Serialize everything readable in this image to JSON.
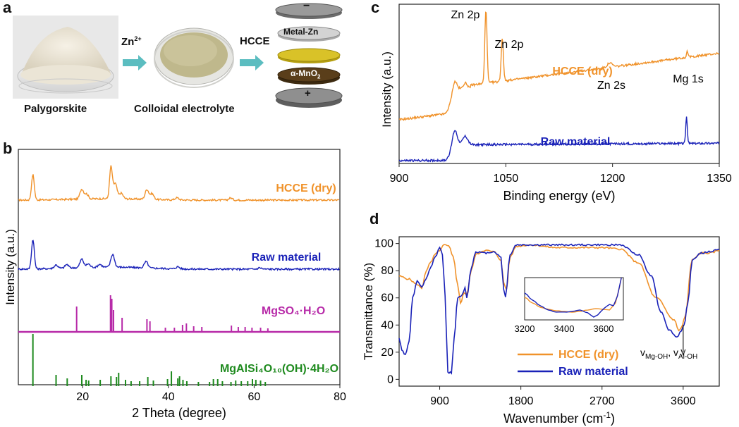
{
  "panel_a": {
    "letter": "a",
    "labels": [
      "Palygorskite",
      "Colloidal electrolyte"
    ],
    "arrow1_label": "Zn",
    "arrow1_sup": "2+",
    "arrow2_label": "HCCE",
    "stack": {
      "top_sign": "−",
      "metal_zn": "Metal-Zn",
      "mno2": "α-MnO",
      "mno2_sub": "2",
      "bottom_sign": "+"
    },
    "colors": {
      "arrow": "#5bbdc0",
      "cap": "#8a8a8a",
      "zn": "#c9c9c9",
      "gel": "#d9c228",
      "mno2": "#5a3e1a"
    }
  },
  "chart_data": [
    {
      "panel": "b",
      "type": "line",
      "xlabel": "2 Theta (degree)",
      "ylabel": "Intensity (a.u.)",
      "xlim": [
        5,
        80
      ],
      "xticks": [
        20,
        40,
        60,
        80
      ],
      "series": [
        {
          "name": "HCCE (dry)",
          "color": "#f0922a",
          "peaks": [
            [
              8.4,
              36
            ],
            [
              19.8,
              14
            ],
            [
              26.6,
              45
            ],
            [
              27.6,
              22
            ],
            [
              35.0,
              14
            ],
            [
              20.9,
              7
            ],
            [
              29.0,
              8
            ],
            [
              36.2,
              8
            ],
            [
              42.0,
              3
            ],
            [
              54.5,
              3
            ]
          ]
        },
        {
          "name": "Raw material",
          "color": "#1a22b8",
          "peaks": [
            [
              8.4,
              42
            ],
            [
              19.8,
              12
            ],
            [
              27.0,
              18
            ],
            [
              34.8,
              9
            ],
            [
              13.8,
              5
            ],
            [
              16.3,
              5
            ],
            [
              21.3,
              5
            ],
            [
              24.0,
              4
            ],
            [
              42.2,
              3
            ],
            [
              61.3,
              2
            ]
          ]
        }
      ],
      "references": [
        {
          "name": "MgSO₄·H₂O",
          "color": "#b72aa8",
          "sticks": [
            [
              18.6,
              35
            ],
            [
              26.5,
              51
            ],
            [
              26.8,
              46
            ],
            [
              27.2,
              30
            ],
            [
              29.2,
              19
            ],
            [
              35.0,
              17
            ],
            [
              35.7,
              14
            ],
            [
              39.3,
              5
            ],
            [
              41.4,
              5
            ],
            [
              43.3,
              9
            ],
            [
              44.2,
              11
            ],
            [
              45.9,
              7
            ],
            [
              47.8,
              6
            ],
            [
              54.7,
              8
            ],
            [
              56.3,
              6
            ],
            [
              57.9,
              6
            ],
            [
              59.5,
              5
            ],
            [
              61.5,
              5
            ],
            [
              63.2,
              4
            ]
          ]
        },
        {
          "name": "MgAlSi₄O₁₀(OH)·4H₂O",
          "color": "#1e8a1e",
          "sticks": [
            [
              8.4,
              74
            ],
            [
              13.8,
              16
            ],
            [
              16.4,
              11
            ],
            [
              19.8,
              16
            ],
            [
              20.8,
              9
            ],
            [
              21.4,
              8
            ],
            [
              24.1,
              9
            ],
            [
              26.6,
              14
            ],
            [
              27.9,
              13
            ],
            [
              28.4,
              19
            ],
            [
              30.0,
              9
            ],
            [
              31.3,
              7
            ],
            [
              33.3,
              7
            ],
            [
              35.2,
              13
            ],
            [
              36.5,
              8
            ],
            [
              39.8,
              10
            ],
            [
              40.7,
              21
            ],
            [
              42.2,
              11
            ],
            [
              42.6,
              14
            ],
            [
              43.4,
              9
            ],
            [
              44.3,
              7
            ],
            [
              47.0,
              6
            ],
            [
              49.6,
              6
            ],
            [
              50.5,
              10
            ],
            [
              51.5,
              10
            ],
            [
              52.6,
              7
            ],
            [
              54.6,
              6
            ],
            [
              55.7,
              8
            ],
            [
              57.0,
              7
            ],
            [
              58.5,
              7
            ],
            [
              59.6,
              10
            ],
            [
              60.4,
              9
            ],
            [
              61.5,
              8
            ],
            [
              62.6,
              6
            ]
          ]
        }
      ]
    },
    {
      "panel": "c",
      "type": "line",
      "xlabel": "Binding energy (eV)",
      "ylabel": "Intensity (a.u.)",
      "xlim": [
        900,
        1350
      ],
      "xticks": [
        900,
        1050,
        1200,
        1350
      ],
      "series": [
        {
          "name": "HCCE (dry)",
          "color": "#f0922a",
          "peaks": [
            [
              1022,
              105
            ],
            [
              1045,
              61
            ],
            [
              978,
              24
            ],
            [
              993,
              10
            ],
            [
              1196,
              6
            ],
            [
              1305,
              9
            ]
          ]
        },
        {
          "name": "Raw material",
          "color": "#1a22b8",
          "peaks": [
            [
              978,
              28
            ],
            [
              993,
              12
            ],
            [
              1304,
              38
            ]
          ]
        }
      ],
      "annotations": [
        "Zn 2p",
        "Zn 2p",
        "Zn 2s",
        "Mg 1s"
      ]
    },
    {
      "panel": "d",
      "type": "line",
      "xlabel": "Wavenumber (cm",
      "xlabel_sup": "-1",
      "xlabel_end": ")",
      "ylabel": "Transmittance (%)",
      "xlim": [
        450,
        4000
      ],
      "ylim": [
        -5,
        105
      ],
      "xticks": [
        900,
        1800,
        2700,
        3600
      ],
      "yticks": [
        0,
        20,
        40,
        60,
        80,
        100
      ],
      "series": [
        {
          "name": "HCCE (dry)",
          "color": "#f0922a",
          "points": [
            [
              450,
              76
            ],
            [
              550,
              74
            ],
            [
              650,
              70
            ],
            [
              700,
              67
            ],
            [
              750,
              80
            ],
            [
              800,
              86
            ],
            [
              850,
              92
            ],
            [
              900,
              95
            ],
            [
              950,
              99
            ],
            [
              1000,
              98
            ],
            [
              1050,
              90
            ],
            [
              1100,
              70
            ],
            [
              1130,
              56
            ],
            [
              1170,
              64
            ],
            [
              1200,
              62
            ],
            [
              1250,
              80
            ],
            [
              1300,
              92
            ],
            [
              1400,
              95
            ],
            [
              1500,
              94
            ],
            [
              1580,
              88
            ],
            [
              1610,
              71
            ],
            [
              1640,
              66
            ],
            [
              1680,
              90
            ],
            [
              1750,
              98
            ],
            [
              1900,
              99
            ],
            [
              2200,
              97
            ],
            [
              2500,
              97
            ],
            [
              2700,
              97
            ],
            [
              2900,
              96
            ],
            [
              3100,
              86
            ],
            [
              3300,
              60
            ],
            [
              3500,
              44
            ],
            [
              3550,
              36
            ],
            [
              3580,
              38
            ],
            [
              3620,
              46
            ],
            [
              3700,
              88
            ],
            [
              3800,
              93
            ],
            [
              3900,
              93
            ],
            [
              4000,
              95
            ]
          ]
        },
        {
          "name": "Raw material",
          "color": "#1a22b8",
          "points": [
            [
              450,
              30
            ],
            [
              480,
              22
            ],
            [
              520,
              18
            ],
            [
              560,
              28
            ],
            [
              600,
              60
            ],
            [
              650,
              72
            ],
            [
              700,
              68
            ],
            [
              750,
              74
            ],
            [
              800,
              82
            ],
            [
              850,
              90
            ],
            [
              900,
              97
            ],
            [
              930,
              92
            ],
            [
              960,
              62
            ],
            [
              990,
              5
            ],
            [
              1030,
              5
            ],
            [
              1060,
              30
            ],
            [
              1100,
              60
            ],
            [
              1150,
              62
            ],
            [
              1180,
              68
            ],
            [
              1200,
              60
            ],
            [
              1250,
              82
            ],
            [
              1300,
              94
            ],
            [
              1400,
              93
            ],
            [
              1500,
              94
            ],
            [
              1580,
              90
            ],
            [
              1610,
              66
            ],
            [
              1630,
              61
            ],
            [
              1680,
              92
            ],
            [
              1750,
              99
            ],
            [
              2000,
              99
            ],
            [
              2300,
              99
            ],
            [
              2700,
              99
            ],
            [
              2900,
              99
            ],
            [
              3100,
              92
            ],
            [
              3250,
              76
            ],
            [
              3350,
              50
            ],
            [
              3450,
              36
            ],
            [
              3530,
              31
            ],
            [
              3580,
              36
            ],
            [
              3610,
              40
            ],
            [
              3650,
              55
            ],
            [
              3700,
              88
            ],
            [
              3800,
              93
            ],
            [
              3900,
              94
            ],
            [
              4000,
              96
            ]
          ]
        }
      ],
      "inset": {
        "xlim": [
          3200,
          3700
        ],
        "xticks": [
          3200,
          3400,
          3600
        ],
        "series": [
          {
            "name": "HCCE (dry)",
            "color": "#f0922a",
            "points": [
              [
                3200,
                72
              ],
              [
                3240,
                64
              ],
              [
                3280,
                58
              ],
              [
                3320,
                55
              ],
              [
                3360,
                53
              ],
              [
                3400,
                52
              ],
              [
                3440,
                51
              ],
              [
                3480,
                52
              ],
              [
                3520,
                54
              ],
              [
                3560,
                56
              ],
              [
                3600,
                55
              ],
              [
                3630,
                54
              ],
              [
                3660,
                64
              ],
              [
                3680,
                86
              ],
              [
                3690,
                100
              ]
            ]
          },
          {
            "name": "Raw material",
            "color": "#1a22b8",
            "points": [
              [
                3200,
                78
              ],
              [
                3240,
                68
              ],
              [
                3280,
                60
              ],
              [
                3320,
                54
              ],
              [
                3360,
                51
              ],
              [
                3400,
                51
              ],
              [
                3440,
                52
              ],
              [
                3480,
                54
              ],
              [
                3520,
                50
              ],
              [
                3550,
                44
              ],
              [
                3570,
                47
              ],
              [
                3600,
                56
              ],
              [
                3630,
                62
              ],
              [
                3650,
                60
              ],
              [
                3670,
                74
              ],
              [
                3690,
                100
              ]
            ]
          }
        ]
      },
      "annotation_label": "v",
      "annotation_sub1": "Mg-OH",
      "annotation_mid": ", v",
      "annotation_sub2": "Al-OH"
    }
  ]
}
